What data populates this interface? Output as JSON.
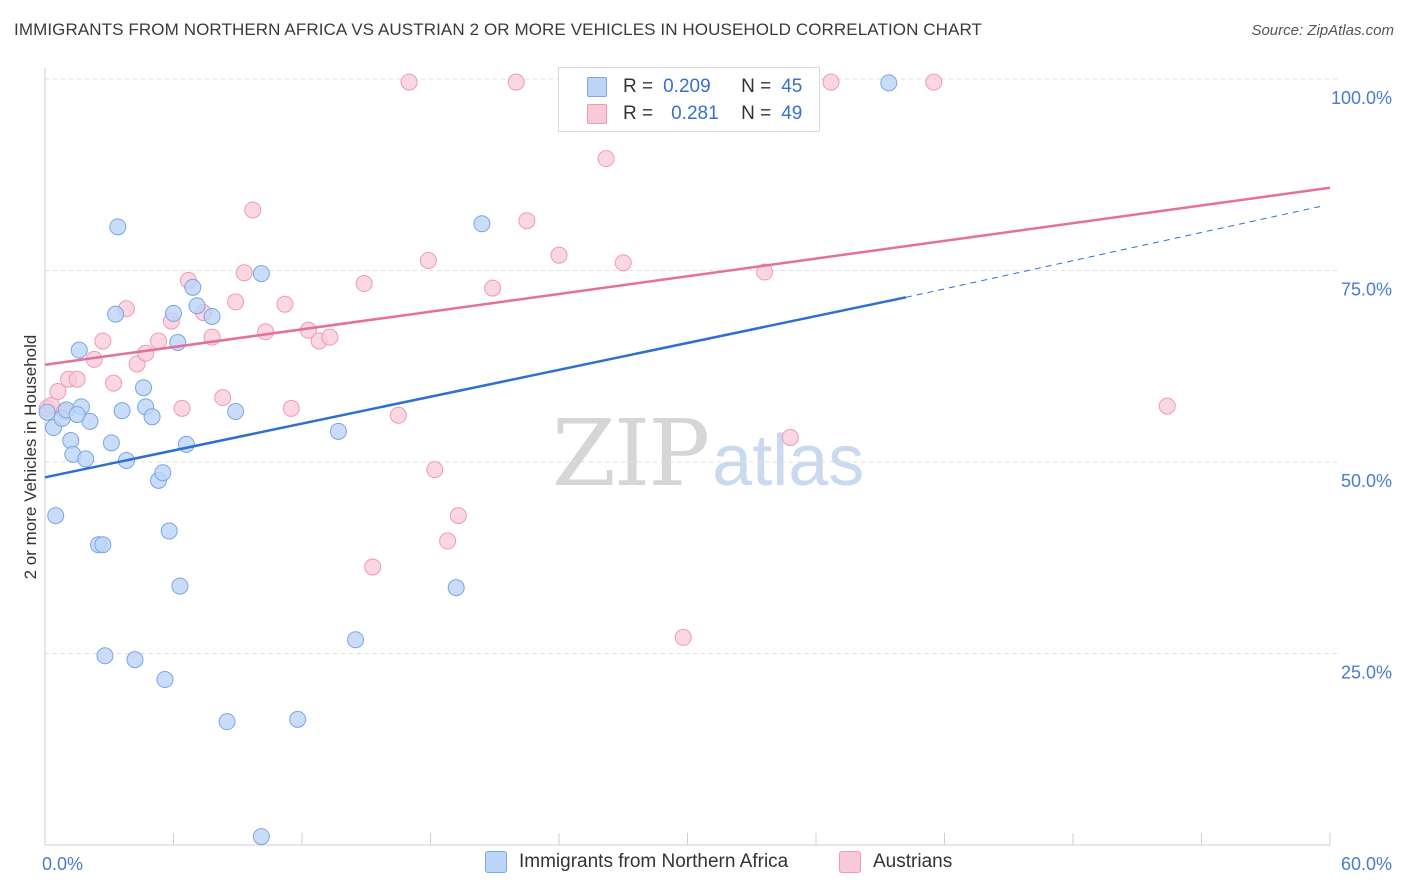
{
  "header": {
    "title": "IMMIGRANTS FROM NORTHERN AFRICA VS AUSTRIAN 2 OR MORE VEHICLES IN HOUSEHOLD CORRELATION CHART",
    "source": "Source: ZipAtlas.com"
  },
  "watermark": {
    "zip": "ZIP",
    "atlas": "atlas"
  },
  "legend": {
    "series1": {
      "r_label": "R =",
      "r_value": "0.209",
      "n_label": "N =",
      "n_value": "45"
    },
    "series2": {
      "r_label": "R =",
      "r_value": "0.281",
      "n_label": "N =",
      "n_value": "49"
    }
  },
  "colors": {
    "blue_fill": "#bcd4f6",
    "blue_stroke": "#7aa5e6",
    "blue_line": "#2e6fcf",
    "pink_fill": "#f9c9d8",
    "pink_stroke": "#ee9ab4",
    "pink_line": "#e5709a"
  },
  "chart_data": {
    "type": "scatter",
    "title": "IMMIGRANTS FROM NORTHERN AFRICA VS AUSTRIAN 2 OR MORE VEHICLES IN HOUSEHOLD CORRELATION CHART",
    "xlabel": "",
    "ylabel": "2 or more Vehicles in Household",
    "xlim": [
      0,
      60
    ],
    "ylim": [
      0,
      102
    ],
    "x_tick_labels": [
      "0.0%",
      "60.0%"
    ],
    "y_tick_labels": [
      "100.0%",
      "75.0%",
      "50.0%",
      "25.0%"
    ],
    "y_tick_values": [
      100,
      75,
      50,
      25
    ],
    "legend_placement": "top-center",
    "series": [
      {
        "name": "Immigrants from Northern Africa",
        "color": "blue",
        "trend": {
          "x": [
            0,
            40.2
          ],
          "y": [
            48.0,
            71.5
          ],
          "dashed_to": [
            60,
            83.5
          ]
        },
        "points": [
          [
            0.1,
            56.5
          ],
          [
            0.4,
            54.5
          ],
          [
            0.5,
            43.0
          ],
          [
            0.8,
            55.7
          ],
          [
            1.0,
            56.8
          ],
          [
            1.2,
            52.8
          ],
          [
            1.3,
            51.0
          ],
          [
            1.6,
            64.6
          ],
          [
            1.7,
            57.2
          ],
          [
            1.9,
            50.4
          ],
          [
            2.1,
            55.3
          ],
          [
            2.5,
            39.2
          ],
          [
            2.7,
            39.2
          ],
          [
            2.8,
            24.7
          ],
          [
            3.1,
            52.5
          ],
          [
            3.3,
            69.3
          ],
          [
            3.4,
            80.7
          ],
          [
            3.6,
            56.7
          ],
          [
            3.8,
            50.2
          ],
          [
            4.2,
            24.2
          ],
          [
            4.6,
            59.7
          ],
          [
            4.7,
            57.2
          ],
          [
            5.0,
            55.9
          ],
          [
            5.3,
            47.6
          ],
          [
            5.5,
            48.6
          ],
          [
            5.6,
            21.6
          ],
          [
            5.8,
            41.0
          ],
          [
            6.0,
            69.4
          ],
          [
            6.2,
            65.6
          ],
          [
            6.3,
            33.8
          ],
          [
            6.6,
            52.3
          ],
          [
            6.9,
            72.8
          ],
          [
            7.1,
            70.4
          ],
          [
            7.8,
            69.0
          ],
          [
            8.5,
            16.1
          ],
          [
            8.9,
            56.6
          ],
          [
            10.1,
            74.6
          ],
          [
            10.1,
            1.1
          ],
          [
            11.8,
            16.4
          ],
          [
            13.7,
            54.0
          ],
          [
            14.5,
            26.8
          ],
          [
            19.2,
            33.6
          ],
          [
            20.4,
            81.1
          ],
          [
            39.4,
            99.5
          ],
          [
            1.5,
            56.2
          ]
        ]
      },
      {
        "name": "Austrians",
        "color": "pink",
        "trend": {
          "x": [
            0,
            60
          ],
          "y": [
            62.7,
            85.8
          ]
        },
        "points": [
          [
            0.1,
            57.0
          ],
          [
            0.3,
            57.4
          ],
          [
            0.6,
            59.2
          ],
          [
            0.9,
            56.6
          ],
          [
            1.1,
            60.8
          ],
          [
            1.5,
            60.8
          ],
          [
            2.3,
            63.4
          ],
          [
            2.7,
            65.8
          ],
          [
            3.2,
            60.3
          ],
          [
            3.8,
            70.0
          ],
          [
            4.3,
            62.8
          ],
          [
            4.7,
            64.2
          ],
          [
            5.3,
            65.8
          ],
          [
            5.9,
            68.4
          ],
          [
            6.4,
            57.0
          ],
          [
            6.7,
            73.7
          ],
          [
            7.4,
            69.5
          ],
          [
            7.8,
            66.3
          ],
          [
            8.3,
            58.4
          ],
          [
            8.9,
            70.9
          ],
          [
            9.3,
            74.7
          ],
          [
            9.7,
            82.9
          ],
          [
            10.3,
            67.0
          ],
          [
            11.2,
            70.6
          ],
          [
            11.5,
            57.0
          ],
          [
            12.3,
            67.2
          ],
          [
            12.8,
            65.8
          ],
          [
            13.3,
            66.3
          ],
          [
            14.9,
            73.3
          ],
          [
            15.3,
            36.3
          ],
          [
            16.5,
            56.1
          ],
          [
            17.0,
            99.6
          ],
          [
            17.9,
            76.3
          ],
          [
            18.2,
            49.0
          ],
          [
            18.8,
            39.7
          ],
          [
            19.3,
            43.0
          ],
          [
            20.9,
            72.7
          ],
          [
            22.0,
            99.6
          ],
          [
            22.5,
            81.5
          ],
          [
            24.0,
            77.0
          ],
          [
            26.2,
            89.6
          ],
          [
            27.0,
            76.0
          ],
          [
            29.5,
            99.6
          ],
          [
            29.8,
            27.1
          ],
          [
            33.6,
            74.8
          ],
          [
            34.8,
            53.2
          ],
          [
            36.7,
            99.6
          ],
          [
            41.5,
            99.6
          ],
          [
            52.4,
            57.3
          ]
        ]
      }
    ]
  },
  "bottom_legend": {
    "series1_label": "Immigrants from Northern Africa",
    "series2_label": "Austrians"
  }
}
